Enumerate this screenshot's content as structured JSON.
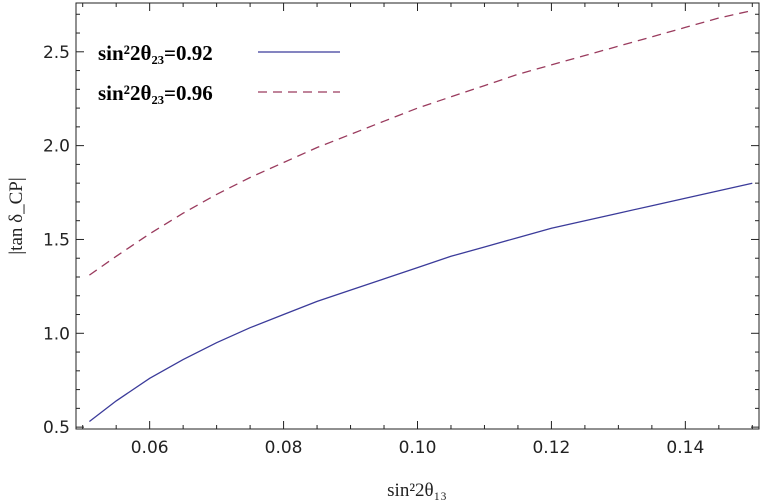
{
  "chart_data": {
    "type": "line",
    "title": "",
    "xlabel": "sin²2θ₁₃",
    "ylabel": "|tan δ_CP|",
    "xlim": [
      0.049,
      0.151
    ],
    "ylim": [
      0.49,
      2.76
    ],
    "xticks": [
      0.06,
      0.08,
      0.1,
      0.12,
      0.14
    ],
    "xtick_labels": [
      "0.06",
      "0.08",
      "0.10",
      "0.12",
      "0.14"
    ],
    "yticks": [
      0.5,
      1.0,
      1.5,
      2.0,
      2.5
    ],
    "ytick_labels": [
      "0.5",
      "1.0",
      "1.5",
      "2.0",
      "2.5"
    ],
    "grid": false,
    "legend_position": "top-left",
    "series": [
      {
        "name": "sin²2θ₂₃=0.92",
        "color": "#3b3b9a",
        "style": "solid",
        "x": [
          0.051,
          0.055,
          0.06,
          0.065,
          0.07,
          0.075,
          0.08,
          0.085,
          0.09,
          0.095,
          0.1,
          0.105,
          0.11,
          0.115,
          0.12,
          0.125,
          0.13,
          0.135,
          0.14,
          0.145,
          0.15
        ],
        "y": [
          0.53,
          0.64,
          0.76,
          0.86,
          0.95,
          1.03,
          1.1,
          1.17,
          1.23,
          1.29,
          1.35,
          1.41,
          1.46,
          1.51,
          1.56,
          1.6,
          1.64,
          1.68,
          1.72,
          1.76,
          1.8
        ]
      },
      {
        "name": "sin²2θ₂₃=0.96",
        "color": "#9a3b5e",
        "style": "dashed",
        "x": [
          0.051,
          0.055,
          0.06,
          0.065,
          0.07,
          0.075,
          0.08,
          0.085,
          0.09,
          0.095,
          0.1,
          0.105,
          0.11,
          0.115,
          0.12,
          0.125,
          0.13,
          0.135,
          0.14,
          0.145,
          0.15
        ],
        "y": [
          1.31,
          1.41,
          1.53,
          1.64,
          1.74,
          1.83,
          1.91,
          1.99,
          2.06,
          2.13,
          2.2,
          2.26,
          2.32,
          2.38,
          2.43,
          2.48,
          2.53,
          2.58,
          2.63,
          2.68,
          2.72
        ]
      }
    ]
  }
}
